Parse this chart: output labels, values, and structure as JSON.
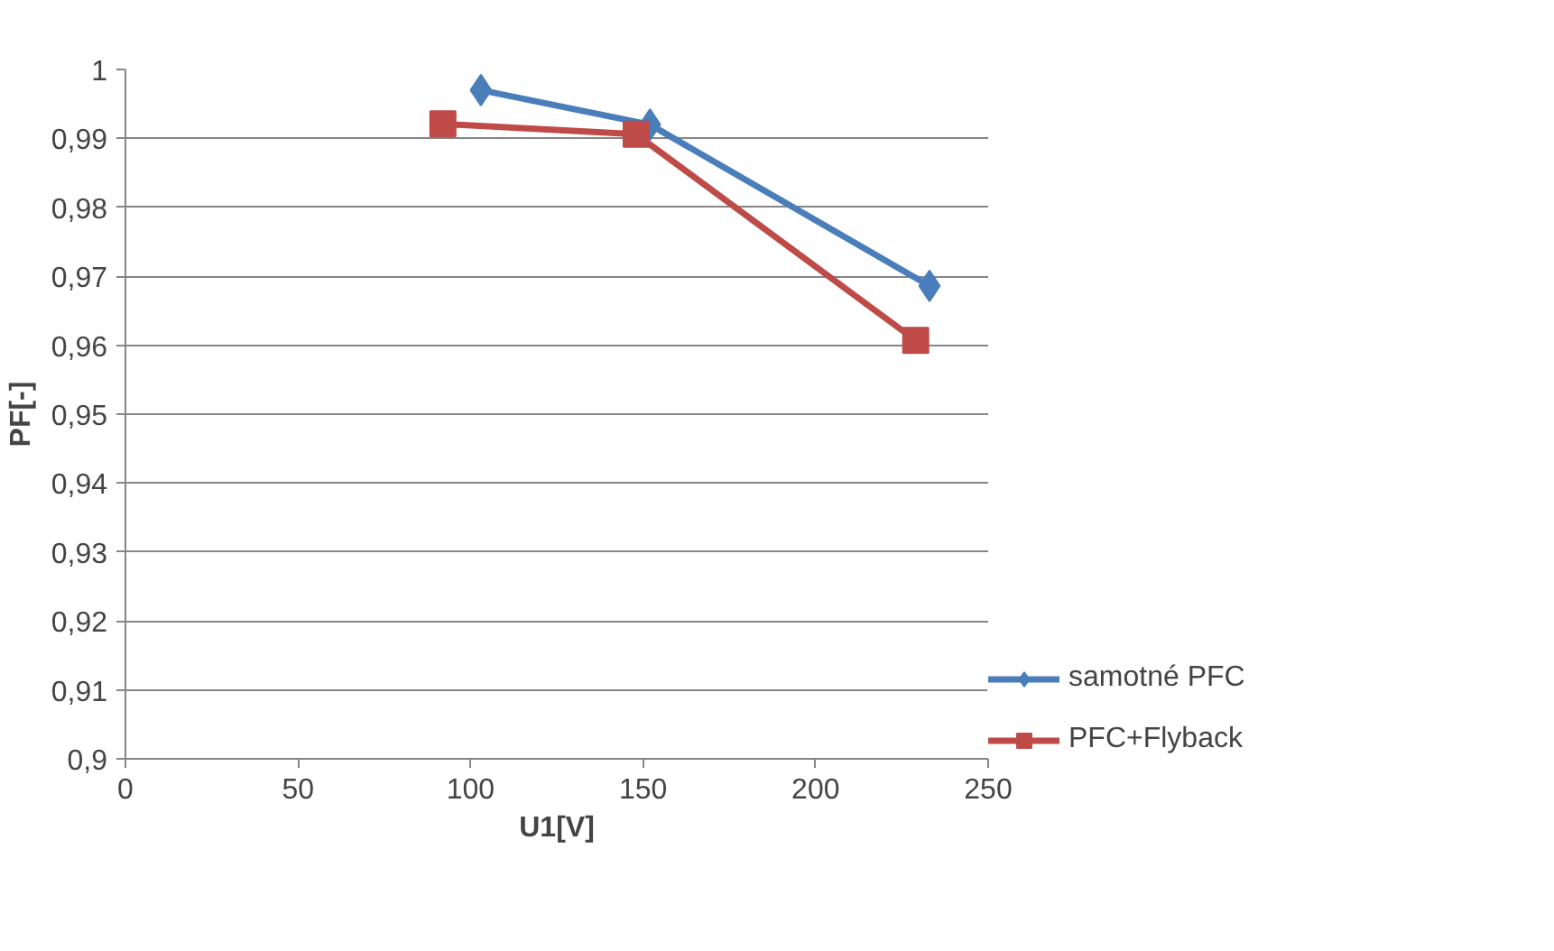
{
  "chart_data": {
    "type": "line",
    "xlabel": "U1[V]",
    "ylabel": "PF[-]",
    "series": [
      {
        "name": "samotné PFC",
        "color": "#4a7ebb",
        "x": [
          103,
          152,
          233
        ],
        "values": [
          0.997,
          0.992,
          0.9686
        ],
        "marker": "diamond"
      },
      {
        "name": "PFC+Flyback",
        "color": "#be4b48",
        "x": [
          92,
          148,
          229
        ],
        "values": [
          0.9921,
          0.9906,
          0.9607
        ],
        "marker": "square"
      }
    ],
    "xlim": [
      0,
      250
    ],
    "xticks": [
      0,
      50,
      100,
      150,
      200,
      250
    ],
    "ylim": [
      0.9,
      1
    ],
    "yticks": [
      {
        "value": 0.9,
        "label": "0,9"
      },
      {
        "value": 0.91,
        "label": "0,91"
      },
      {
        "value": 0.92,
        "label": "0,92"
      },
      {
        "value": 0.93,
        "label": "0,93"
      },
      {
        "value": 0.94,
        "label": "0,94"
      },
      {
        "value": 0.95,
        "label": "0,95"
      },
      {
        "value": 0.96,
        "label": "0,96"
      },
      {
        "value": 0.97,
        "label": "0,97"
      },
      {
        "value": 0.98,
        "label": "0,98"
      },
      {
        "value": 0.99,
        "label": "0,99"
      },
      {
        "value": 1,
        "label": "1"
      }
    ],
    "grid": "y",
    "legend": "right",
    "line_style": "solid"
  }
}
